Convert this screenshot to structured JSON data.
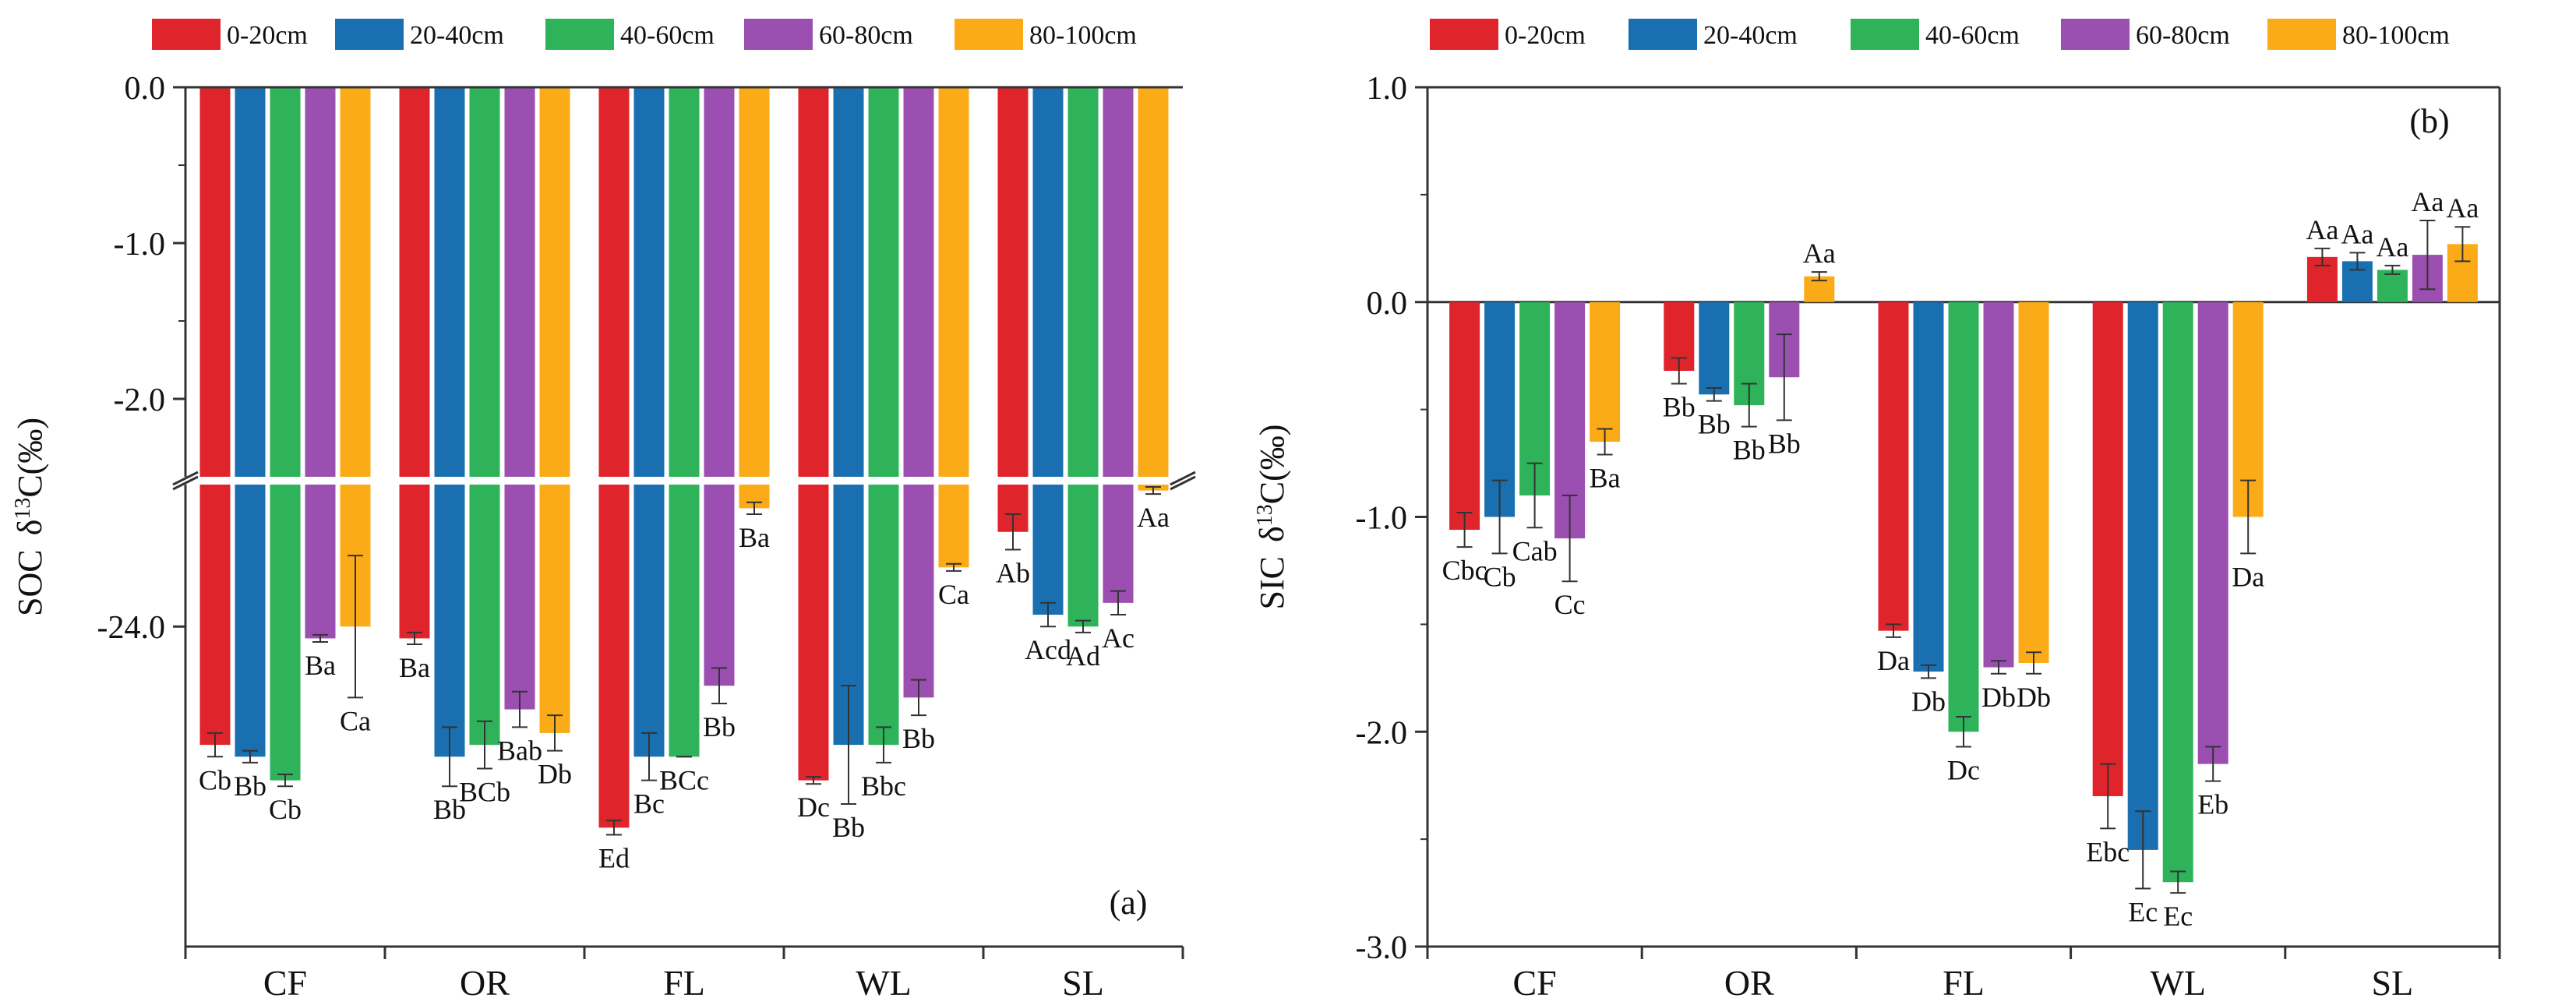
{
  "colors": {
    "0-20cm": "#e0242c",
    "20-40cm": "#1a6fb0",
    "40-60cm": "#2eb35a",
    "60-80cm": "#9b4fb1",
    "80-100cm": "#fbab18",
    "axis": "#333333",
    "errorbar": "#333333"
  },
  "chart_data": [
    {
      "type": "bar",
      "panel_label": "(a)",
      "ylabel": "SOC δ13C(‰)",
      "ylabel_prefix": "SOC",
      "ylabel_delta": "δ",
      "ylabel_sup": "13",
      "ylabel_suffix": "C(‰)",
      "categories": [
        "CF",
        "OR",
        "FL",
        "WL",
        "SL"
      ],
      "axis_break": true,
      "upper_segment": {
        "ylim": [
          -2.5,
          0.0
        ],
        "ticks": [
          0.0,
          -1.0,
          -2.0
        ],
        "tick_labels": [
          "0.0",
          "-1.0",
          "-2.0"
        ]
      },
      "lower_segment": {
        "ylim": [
          -27.1,
          -22.8
        ],
        "ticks": [
          -24.0
        ],
        "tick_labels": [
          "-24.0"
        ]
      },
      "series": [
        {
          "name": "0-20cm",
          "values": [
            -25.0,
            -24.1,
            -25.7,
            -25.3,
            -23.2
          ],
          "errors": [
            0.1,
            0.05,
            0.06,
            0.03,
            0.15
          ],
          "labels": [
            "Cb",
            "Ba",
            "Ed",
            "Dc",
            "Ab"
          ]
        },
        {
          "name": "20-40cm",
          "values": [
            -25.1,
            -25.1,
            -25.1,
            -25.0,
            -23.9
          ],
          "errors": [
            0.05,
            0.25,
            0.2,
            0.5,
            0.1
          ],
          "labels": [
            "Bb",
            "Bb",
            "Bc",
            "Bb",
            "Acd"
          ]
        },
        {
          "name": "40-60cm",
          "values": [
            -25.3,
            -25.0,
            -25.1,
            -25.0,
            -24.0
          ],
          "errors": [
            0.05,
            0.2,
            0.0,
            0.15,
            0.05
          ],
          "labels": [
            "Cb",
            "BCb",
            "BCc",
            "Bbc",
            "Ad"
          ]
        },
        {
          "name": "60-80cm",
          "values": [
            -24.1,
            -24.7,
            -24.5,
            -24.6,
            -23.8
          ],
          "errors": [
            0.03,
            0.15,
            0.15,
            0.15,
            0.1
          ],
          "labels": [
            "Ba",
            "Bab",
            "Bb",
            "Bb",
            "Ac"
          ]
        },
        {
          "name": "80-100cm",
          "values": [
            -24.0,
            -24.9,
            -23.0,
            -23.5,
            -22.85
          ],
          "errors": [
            0.6,
            0.15,
            0.05,
            0.03,
            0.03
          ],
          "labels": [
            "Ca",
            "Db",
            "Ba",
            "Ca",
            "Aa"
          ]
        }
      ]
    },
    {
      "type": "bar",
      "panel_label": "(b)",
      "ylabel": "SIC δ13C(‰)",
      "ylabel_prefix": "SIC",
      "ylabel_delta": "δ",
      "ylabel_sup": "13",
      "ylabel_suffix": "C(‰)",
      "categories": [
        "CF",
        "OR",
        "FL",
        "WL",
        "SL"
      ],
      "ylim": [
        -3.0,
        1.0
      ],
      "ticks": [
        1.0,
        0.0,
        -1.0,
        -2.0,
        -3.0
      ],
      "tick_labels": [
        "1.0",
        "0.0",
        "-1.0",
        "-2.0",
        "-3.0"
      ],
      "series": [
        {
          "name": "0-20cm",
          "values": [
            -1.06,
            -0.32,
            -1.53,
            -2.3,
            0.21
          ],
          "errors": [
            0.08,
            0.06,
            0.03,
            0.15,
            0.04
          ],
          "labels": [
            "Cbc",
            "Bb",
            "Da",
            "Ebc",
            "Aa"
          ]
        },
        {
          "name": "20-40cm",
          "values": [
            -1.0,
            -0.43,
            -1.72,
            -2.55,
            0.19
          ],
          "errors": [
            0.17,
            0.03,
            0.03,
            0.18,
            0.04
          ],
          "labels": [
            "Cb",
            "Bb",
            "Db",
            "Ec",
            "Aa"
          ]
        },
        {
          "name": "40-60cm",
          "values": [
            -0.9,
            -0.48,
            -2.0,
            -2.7,
            0.15
          ],
          "errors": [
            0.15,
            0.1,
            0.07,
            0.05,
            0.02
          ],
          "labels": [
            "Cab",
            "Bb",
            "Dc",
            "Ec",
            "Aa"
          ]
        },
        {
          "name": "60-80cm",
          "values": [
            -1.1,
            -0.35,
            -1.7,
            -2.15,
            0.22
          ],
          "errors": [
            0.2,
            0.2,
            0.03,
            0.08,
            0.16
          ],
          "labels": [
            "Cc",
            "Bb",
            "Db",
            "Eb",
            "Aa"
          ]
        },
        {
          "name": "80-100cm",
          "values": [
            -0.65,
            0.12,
            -1.68,
            -1.0,
            0.27
          ],
          "errors": [
            0.06,
            0.02,
            0.05,
            0.17,
            0.08
          ],
          "labels": [
            "Ba",
            "Aa",
            "Db",
            "Da",
            "Aa"
          ]
        }
      ]
    }
  ]
}
